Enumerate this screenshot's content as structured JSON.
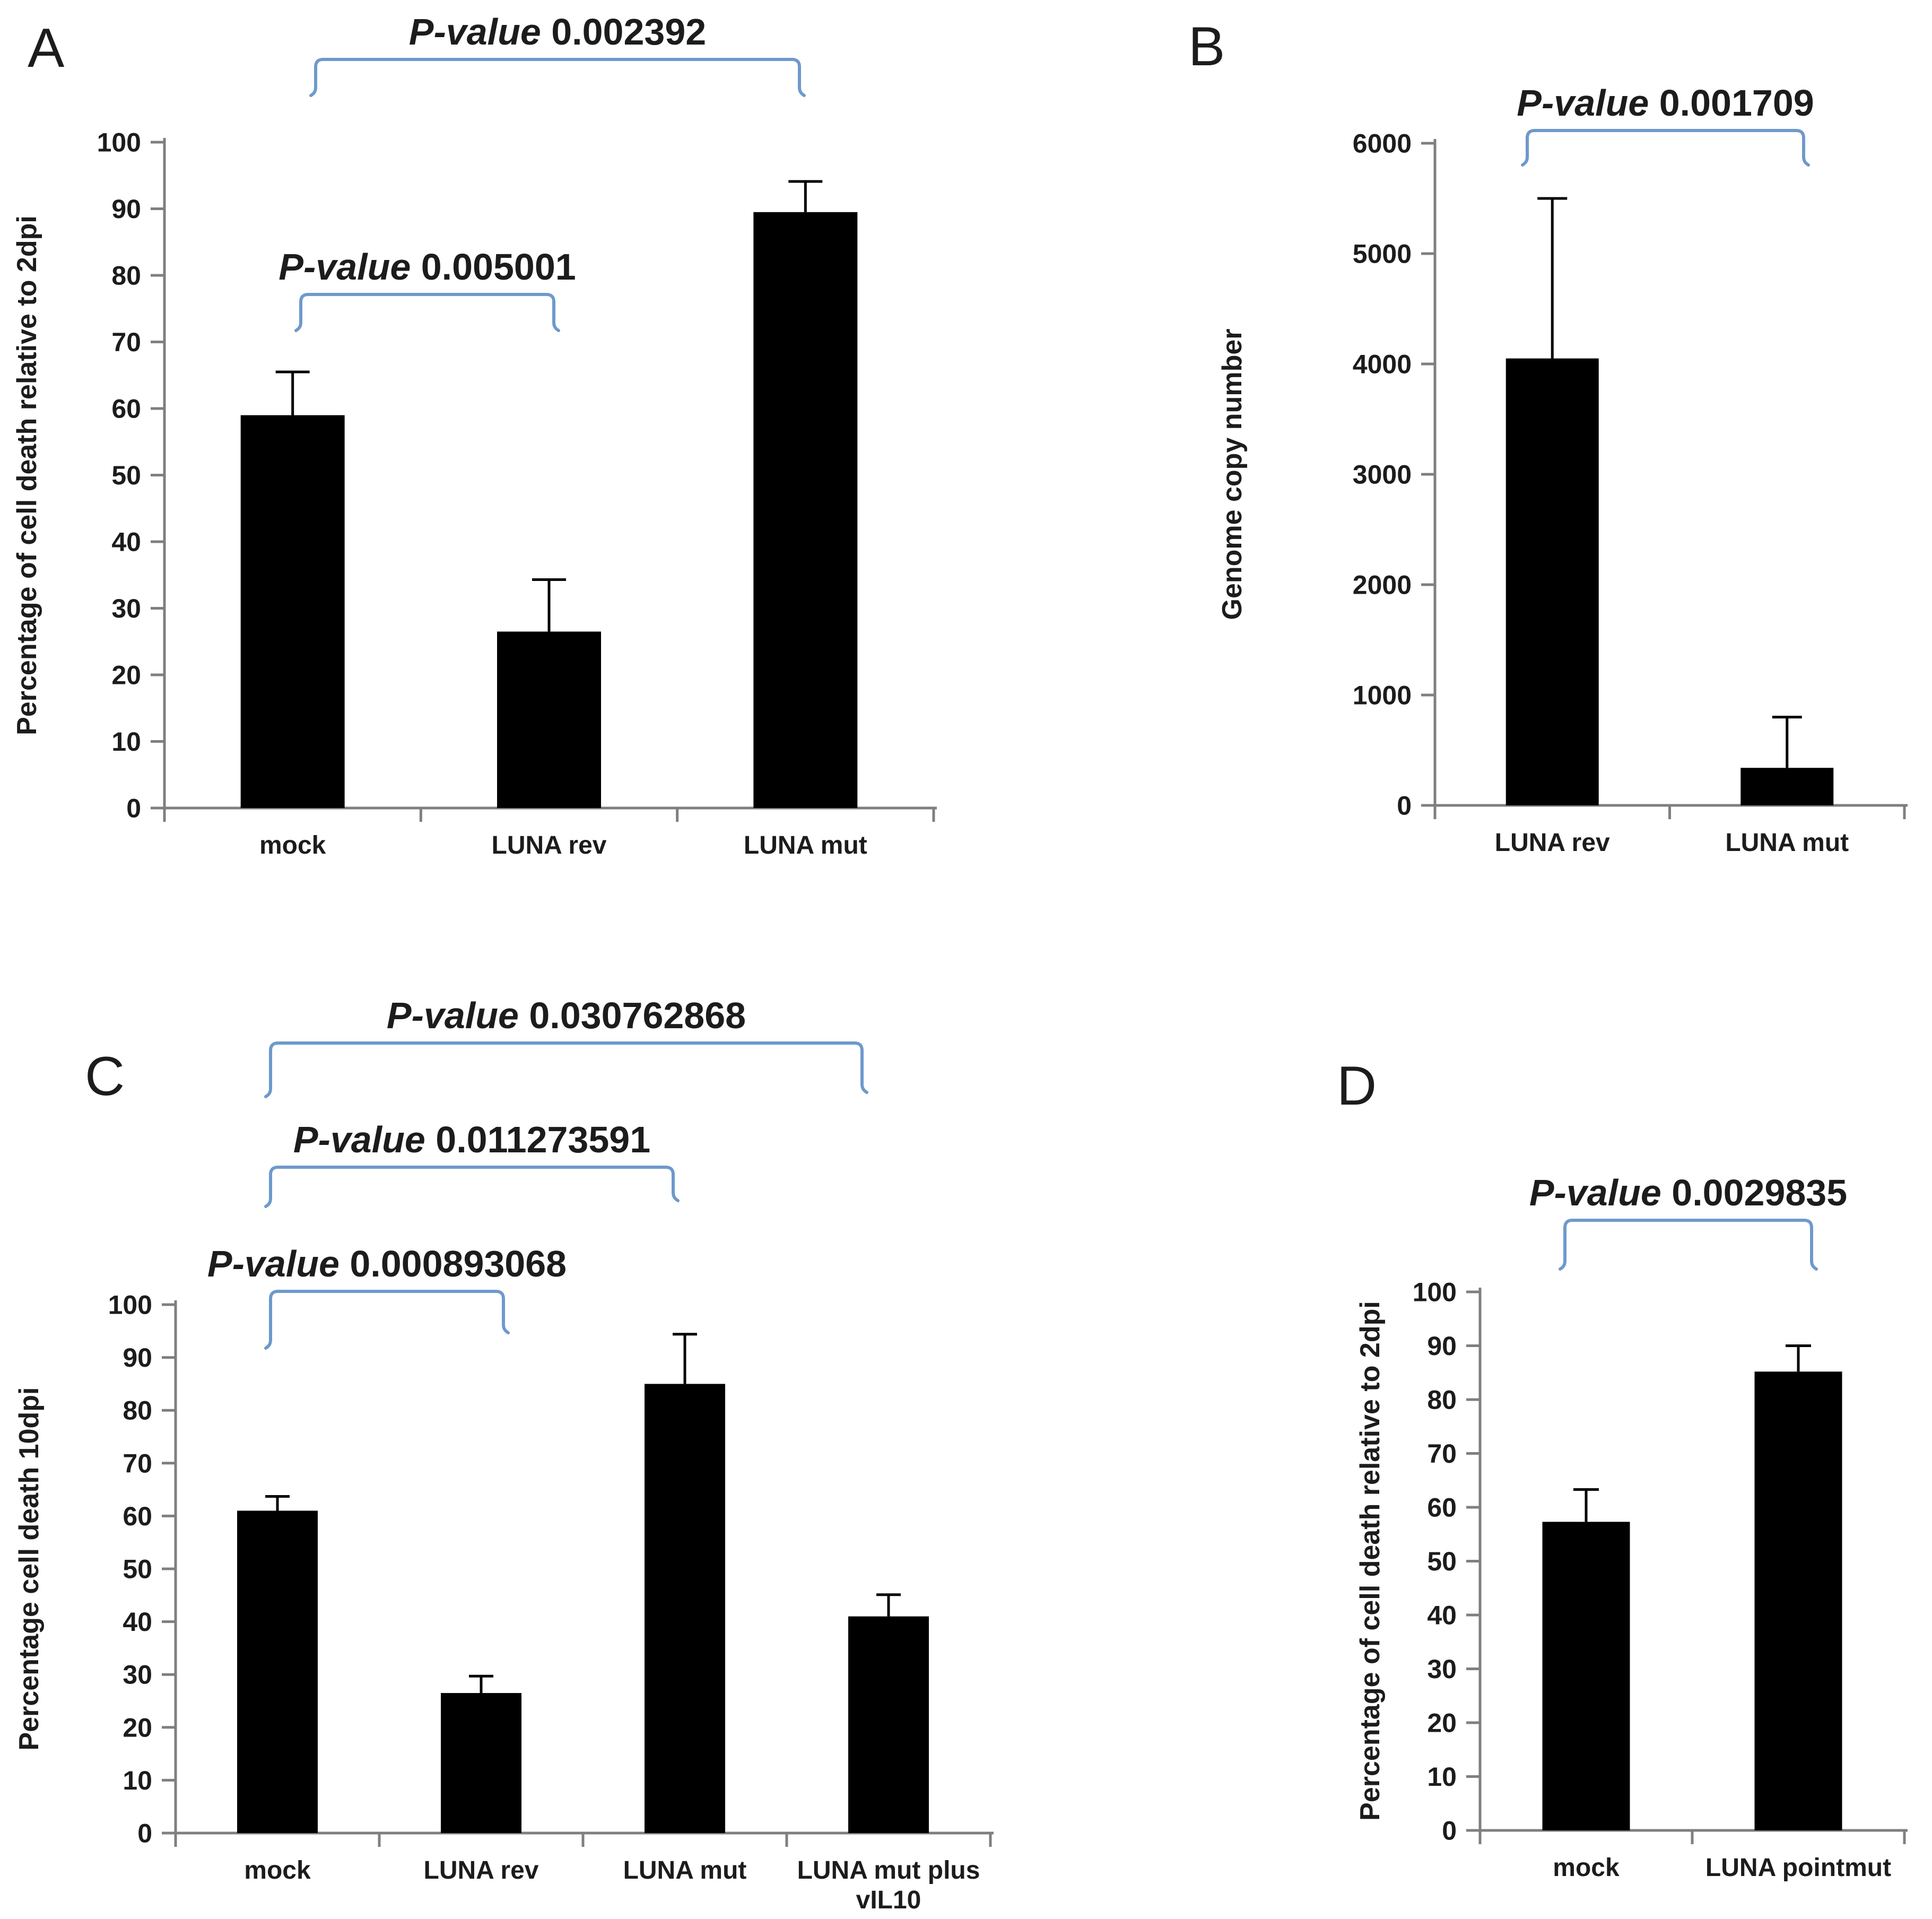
{
  "figure_type": "multi-panel scientific bar chart figure",
  "colors": {
    "background": "#ffffff",
    "bar": "#000000",
    "axis": "#7f7f7f",
    "text": "#1c1c1c",
    "bracket": "#6e99cc"
  },
  "chart_data": [
    {
      "panel_label": "A",
      "type": "bar",
      "title": "",
      "xlabel": "",
      "ylabel": "Percentage of cell death relative to 2dpi",
      "ylim": [
        0,
        100
      ],
      "ytick_step": 10,
      "grid": false,
      "categories": [
        "mock",
        "LUNA rev",
        "LUNA mut"
      ],
      "values": [
        59,
        26.5,
        89.5
      ],
      "errors_plus": [
        6.5,
        7.8,
        4.6
      ],
      "significance": [
        {
          "label_prefix": "P-value",
          "p_value": "0.002392",
          "from": "mock",
          "to": "LUNA mut"
        },
        {
          "label_prefix": "P-value",
          "p_value": "0.005001",
          "from": "mock",
          "to": "LUNA rev"
        }
      ]
    },
    {
      "panel_label": "B",
      "type": "bar",
      "title": "",
      "xlabel": "",
      "ylabel": "Genome copy number",
      "ylim": [
        0,
        6000
      ],
      "ytick_step": 1000,
      "grid": false,
      "categories": [
        "LUNA rev",
        "LUNA mut"
      ],
      "values": [
        4050,
        340
      ],
      "errors_plus": [
        1450,
        460
      ],
      "significance": [
        {
          "label_prefix": "P-value",
          "p_value": "0.001709",
          "from": "LUNA rev",
          "to": "LUNA mut"
        }
      ]
    },
    {
      "panel_label": "C",
      "type": "bar",
      "title": "",
      "xlabel": "",
      "ylabel": "Percentage cell death 10dpi",
      "ylim": [
        0,
        100
      ],
      "ytick_step": 10,
      "grid": false,
      "categories": [
        "mock",
        "LUNA rev",
        "LUNA mut",
        "LUNA mut plus vIL10"
      ],
      "values": [
        61,
        26.5,
        85,
        41
      ],
      "errors_plus": [
        2.7,
        3.2,
        9.4,
        4.1
      ],
      "significance": [
        {
          "label_prefix": "P-value",
          "p_value": "0.030762868",
          "from": "mock",
          "to": "LUNA mut plus vIL10"
        },
        {
          "label_prefix": "P-value",
          "p_value": "0.011273591",
          "from": "mock",
          "to": "LUNA mut"
        },
        {
          "label_prefix": "P-value",
          "p_value": "0.000893068",
          "from": "mock",
          "to": "LUNA rev"
        }
      ]
    },
    {
      "panel_label": "D",
      "type": "bar",
      "title": "",
      "xlabel": "",
      "ylabel": "Percentage of cell death relative to 2dpi",
      "ylim": [
        0,
        100
      ],
      "ytick_step": 10,
      "grid": false,
      "categories": [
        "mock",
        "LUNA pointmut"
      ],
      "values": [
        57.3,
        85.2
      ],
      "errors_plus": [
        6,
        4.8
      ],
      "significance": [
        {
          "label_prefix": "P-value",
          "p_value": "0.0029835",
          "from": "mock",
          "to": "LUNA pointmut"
        }
      ]
    }
  ]
}
